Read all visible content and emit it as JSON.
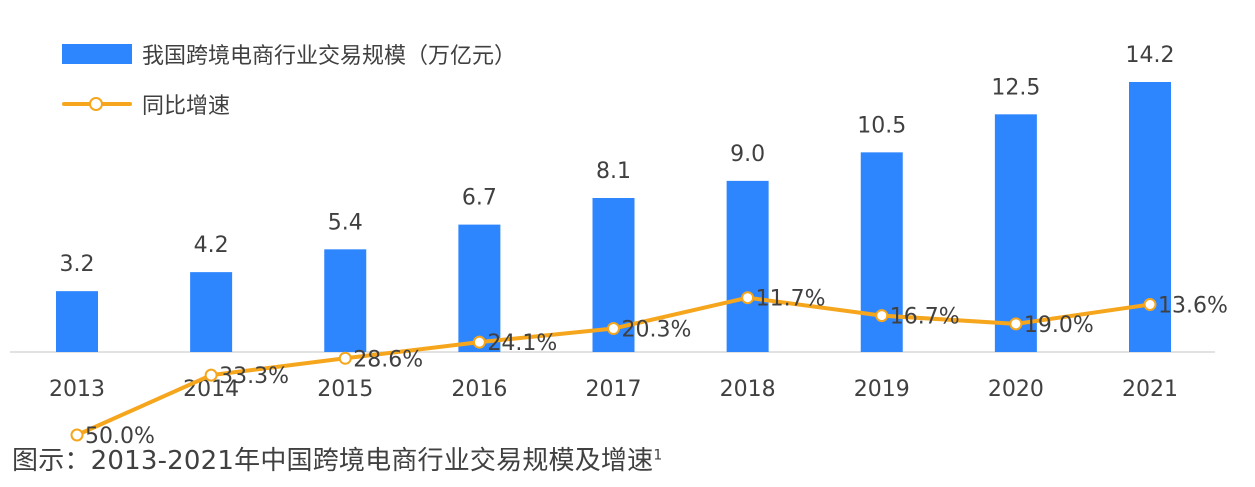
{
  "colors": {
    "bar": "#2E86FF",
    "line": "#F5A61C",
    "text": "#404040",
    "axis": "#D9D9D9"
  },
  "legend": {
    "bar_label": "我国跨境电商行业交易规模（万亿元）",
    "line_label": "同比增速"
  },
  "caption": {
    "text": "图示：2013-2021年中国跨境电商行业交易规模及增速",
    "footnote": "1"
  },
  "chart_data": {
    "type": "bar+line",
    "categories": [
      "2013",
      "2014",
      "2015",
      "2016",
      "2017",
      "2018",
      "2019",
      "2020",
      "2021"
    ],
    "series": [
      {
        "name": "我国跨境电商行业交易规模（万亿元）",
        "type": "bar",
        "values": [
          3.2,
          4.2,
          5.4,
          6.7,
          8.1,
          9.0,
          10.5,
          12.5,
          14.2
        ],
        "labels": [
          "3.2",
          "4.2",
          "5.4",
          "6.7",
          "8.1",
          "9.0",
          "10.5",
          "12.5",
          "14.2"
        ]
      },
      {
        "name": "同比增速",
        "type": "line",
        "values": [
          50.0,
          33.3,
          28.6,
          24.1,
          20.3,
          11.7,
          16.7,
          19.0,
          13.6
        ],
        "labels": [
          "50.0%",
          "33.3%",
          "28.6%",
          "24.1%",
          "20.3%",
          "11.7%",
          "16.7%",
          "19.0%",
          "13.6%"
        ]
      }
    ],
    "bar_axis_range": [
      0,
      14.2
    ],
    "line_axis_range": [
      0,
      50
    ]
  }
}
